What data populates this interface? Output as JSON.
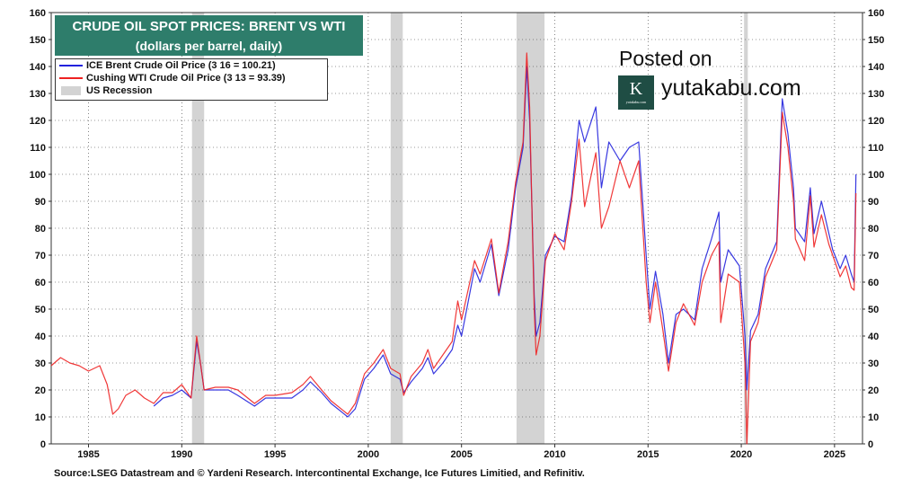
{
  "header": {
    "title": "CRUDE OIL SPOT PRICES: BRENT VS WTI",
    "subtitle": "(dollars per barrel, daily)"
  },
  "legend": {
    "brent": "ICE Brent Crude Oil Price (3 16 = 100.21)",
    "wti": "Cushing WTI Crude Oil Price (3 13 = 93.39)",
    "recession": "US Recession"
  },
  "watermark": {
    "posted_on": "Posted on",
    "logo_letter": "K",
    "logo_small": "yutakabu.com",
    "site": "yutakabu.com"
  },
  "footer": {
    "source": "Source:LSEG Datastream and © Yardeni Research. Intercontinental Exchange, Ice Futures Limitied, and Refinitiv."
  },
  "colors": {
    "brent": "#2222dd",
    "wti": "#ee2222",
    "recession": "#d3d3d3",
    "title_bg": "#2e7d6b"
  },
  "chart_data": {
    "type": "line",
    "title": "CRUDE OIL SPOT PRICES: BRENT VS WTI",
    "subtitle": "(dollars per barrel, daily)",
    "x_ticks": [
      1985,
      1990,
      1995,
      2000,
      2005,
      2010,
      2015,
      2020,
      2025
    ],
    "y_ticks": [
      0,
      10,
      20,
      30,
      40,
      50,
      60,
      70,
      80,
      90,
      100,
      110,
      120,
      130,
      140,
      150,
      160
    ],
    "xlim": [
      1983.0,
      2026.5
    ],
    "ylim": [
      0,
      160
    ],
    "grid": true,
    "legend_position": "top-left",
    "recessions": [
      [
        1990.55,
        1991.2
      ],
      [
        2001.2,
        2001.85
      ],
      [
        2007.95,
        2009.45
      ],
      [
        2020.15,
        2020.35
      ]
    ],
    "series": [
      {
        "name": "ICE Brent Crude Oil Price (3 16 = 100.21)",
        "color": "#2222dd",
        "points": [
          [
            1988.5,
            14
          ],
          [
            1989,
            17
          ],
          [
            1989.5,
            18
          ],
          [
            1990,
            20
          ],
          [
            1990.5,
            17
          ],
          [
            1990.8,
            38
          ],
          [
            1991.0,
            30
          ],
          [
            1991.2,
            20
          ],
          [
            1991.8,
            20
          ],
          [
            1992.5,
            20
          ],
          [
            1993,
            18
          ],
          [
            1993.9,
            14
          ],
          [
            1994.5,
            17
          ],
          [
            1995,
            17
          ],
          [
            1995.9,
            17
          ],
          [
            1996.5,
            20
          ],
          [
            1996.9,
            23
          ],
          [
            1997.5,
            19
          ],
          [
            1998,
            15
          ],
          [
            1998.9,
            10
          ],
          [
            1999.3,
            13
          ],
          [
            1999.8,
            24
          ],
          [
            2000.3,
            28
          ],
          [
            2000.8,
            33
          ],
          [
            2001.2,
            26
          ],
          [
            2001.7,
            24
          ],
          [
            2001.9,
            19
          ],
          [
            2002.3,
            23
          ],
          [
            2002.9,
            28
          ],
          [
            2003.2,
            32
          ],
          [
            2003.5,
            26
          ],
          [
            2004,
            30
          ],
          [
            2004.5,
            35
          ],
          [
            2004.8,
            44
          ],
          [
            2005,
            40
          ],
          [
            2005.7,
            65
          ],
          [
            2006,
            60
          ],
          [
            2006.6,
            74
          ],
          [
            2007,
            55
          ],
          [
            2007.5,
            72
          ],
          [
            2007.9,
            95
          ],
          [
            2008.3,
            110
          ],
          [
            2008.5,
            140
          ],
          [
            2008.65,
            120
          ],
          [
            2008.9,
            55
          ],
          [
            2009,
            40
          ],
          [
            2009.2,
            45
          ],
          [
            2009.5,
            70
          ],
          [
            2010,
            77
          ],
          [
            2010.5,
            75
          ],
          [
            2010.9,
            92
          ],
          [
            2011.3,
            120
          ],
          [
            2011.6,
            112
          ],
          [
            2012.2,
            125
          ],
          [
            2012.5,
            95
          ],
          [
            2012.9,
            112
          ],
          [
            2013.5,
            105
          ],
          [
            2014,
            110
          ],
          [
            2014.5,
            112
          ],
          [
            2014.9,
            70
          ],
          [
            2015.1,
            50
          ],
          [
            2015.4,
            64
          ],
          [
            2015.8,
            48
          ],
          [
            2016.1,
            30
          ],
          [
            2016.5,
            48
          ],
          [
            2016.9,
            50
          ],
          [
            2017.5,
            46
          ],
          [
            2017.9,
            65
          ],
          [
            2018.4,
            76
          ],
          [
            2018.8,
            86
          ],
          [
            2018.9,
            60
          ],
          [
            2019.3,
            72
          ],
          [
            2019.9,
            66
          ],
          [
            2020.2,
            40
          ],
          [
            2020.3,
            20
          ],
          [
            2020.5,
            42
          ],
          [
            2020.9,
            48
          ],
          [
            2021.3,
            65
          ],
          [
            2021.9,
            75
          ],
          [
            2022.2,
            128
          ],
          [
            2022.5,
            115
          ],
          [
            2022.8,
            95
          ],
          [
            2022.9,
            80
          ],
          [
            2023.4,
            75
          ],
          [
            2023.7,
            95
          ],
          [
            2023.9,
            78
          ],
          [
            2024.3,
            90
          ],
          [
            2024.7,
            78
          ],
          [
            2024.9,
            72
          ],
          [
            2025.3,
            65
          ],
          [
            2025.6,
            70
          ],
          [
            2025.9,
            63
          ],
          [
            2026.05,
            60
          ],
          [
            2026.15,
            100
          ]
        ]
      },
      {
        "name": "Cushing WTI Crude Oil Price (3 13 = 93.39)",
        "color": "#ee2222",
        "points": [
          [
            1983,
            29
          ],
          [
            1983.5,
            32
          ],
          [
            1984,
            30
          ],
          [
            1984.5,
            29
          ],
          [
            1985,
            27
          ],
          [
            1985.6,
            29
          ],
          [
            1986,
            22
          ],
          [
            1986.3,
            11
          ],
          [
            1986.6,
            13
          ],
          [
            1987,
            18
          ],
          [
            1987.5,
            20
          ],
          [
            1988,
            17
          ],
          [
            1988.5,
            15
          ],
          [
            1989,
            19
          ],
          [
            1989.5,
            19
          ],
          [
            1990,
            22
          ],
          [
            1990.5,
            17
          ],
          [
            1990.8,
            40
          ],
          [
            1991.0,
            30
          ],
          [
            1991.2,
            20
          ],
          [
            1991.8,
            21
          ],
          [
            1992.5,
            21
          ],
          [
            1993,
            20
          ],
          [
            1993.9,
            15
          ],
          [
            1994.5,
            18
          ],
          [
            1995,
            18
          ],
          [
            1995.9,
            19
          ],
          [
            1996.5,
            22
          ],
          [
            1996.9,
            25
          ],
          [
            1997.5,
            20
          ],
          [
            1998,
            16
          ],
          [
            1998.9,
            11
          ],
          [
            1999.3,
            15
          ],
          [
            1999.8,
            26
          ],
          [
            2000.3,
            30
          ],
          [
            2000.8,
            35
          ],
          [
            2001.2,
            28
          ],
          [
            2001.7,
            26
          ],
          [
            2001.9,
            18
          ],
          [
            2002.3,
            25
          ],
          [
            2002.9,
            30
          ],
          [
            2003.2,
            35
          ],
          [
            2003.5,
            28
          ],
          [
            2004,
            33
          ],
          [
            2004.5,
            38
          ],
          [
            2004.8,
            53
          ],
          [
            2005,
            46
          ],
          [
            2005.7,
            68
          ],
          [
            2006,
            63
          ],
          [
            2006.6,
            76
          ],
          [
            2007,
            56
          ],
          [
            2007.5,
            75
          ],
          [
            2007.9,
            97
          ],
          [
            2008.3,
            112
          ],
          [
            2008.5,
            145
          ],
          [
            2008.65,
            125
          ],
          [
            2008.9,
            50
          ],
          [
            2009,
            33
          ],
          [
            2009.2,
            40
          ],
          [
            2009.5,
            68
          ],
          [
            2010,
            78
          ],
          [
            2010.5,
            72
          ],
          [
            2010.9,
            90
          ],
          [
            2011.3,
            113
          ],
          [
            2011.6,
            88
          ],
          [
            2012.2,
            108
          ],
          [
            2012.5,
            80
          ],
          [
            2012.9,
            88
          ],
          [
            2013.5,
            105
          ],
          [
            2014,
            95
          ],
          [
            2014.5,
            105
          ],
          [
            2014.9,
            60
          ],
          [
            2015.1,
            45
          ],
          [
            2015.4,
            60
          ],
          [
            2015.8,
            42
          ],
          [
            2016.1,
            27
          ],
          [
            2016.5,
            45
          ],
          [
            2016.9,
            52
          ],
          [
            2017.5,
            44
          ],
          [
            2017.9,
            60
          ],
          [
            2018.4,
            70
          ],
          [
            2018.8,
            75
          ],
          [
            2018.9,
            45
          ],
          [
            2019.3,
            63
          ],
          [
            2019.9,
            60
          ],
          [
            2020.2,
            30
          ],
          [
            2020.3,
            0
          ],
          [
            2020.5,
            38
          ],
          [
            2020.9,
            45
          ],
          [
            2021.3,
            62
          ],
          [
            2021.9,
            72
          ],
          [
            2022.2,
            123
          ],
          [
            2022.5,
            110
          ],
          [
            2022.8,
            90
          ],
          [
            2022.9,
            76
          ],
          [
            2023.4,
            68
          ],
          [
            2023.7,
            92
          ],
          [
            2023.9,
            73
          ],
          [
            2024.3,
            85
          ],
          [
            2024.7,
            74
          ],
          [
            2024.9,
            70
          ],
          [
            2025.3,
            62
          ],
          [
            2025.6,
            66
          ],
          [
            2025.9,
            58
          ],
          [
            2026.05,
            57
          ],
          [
            2026.15,
            93
          ]
        ]
      }
    ]
  }
}
